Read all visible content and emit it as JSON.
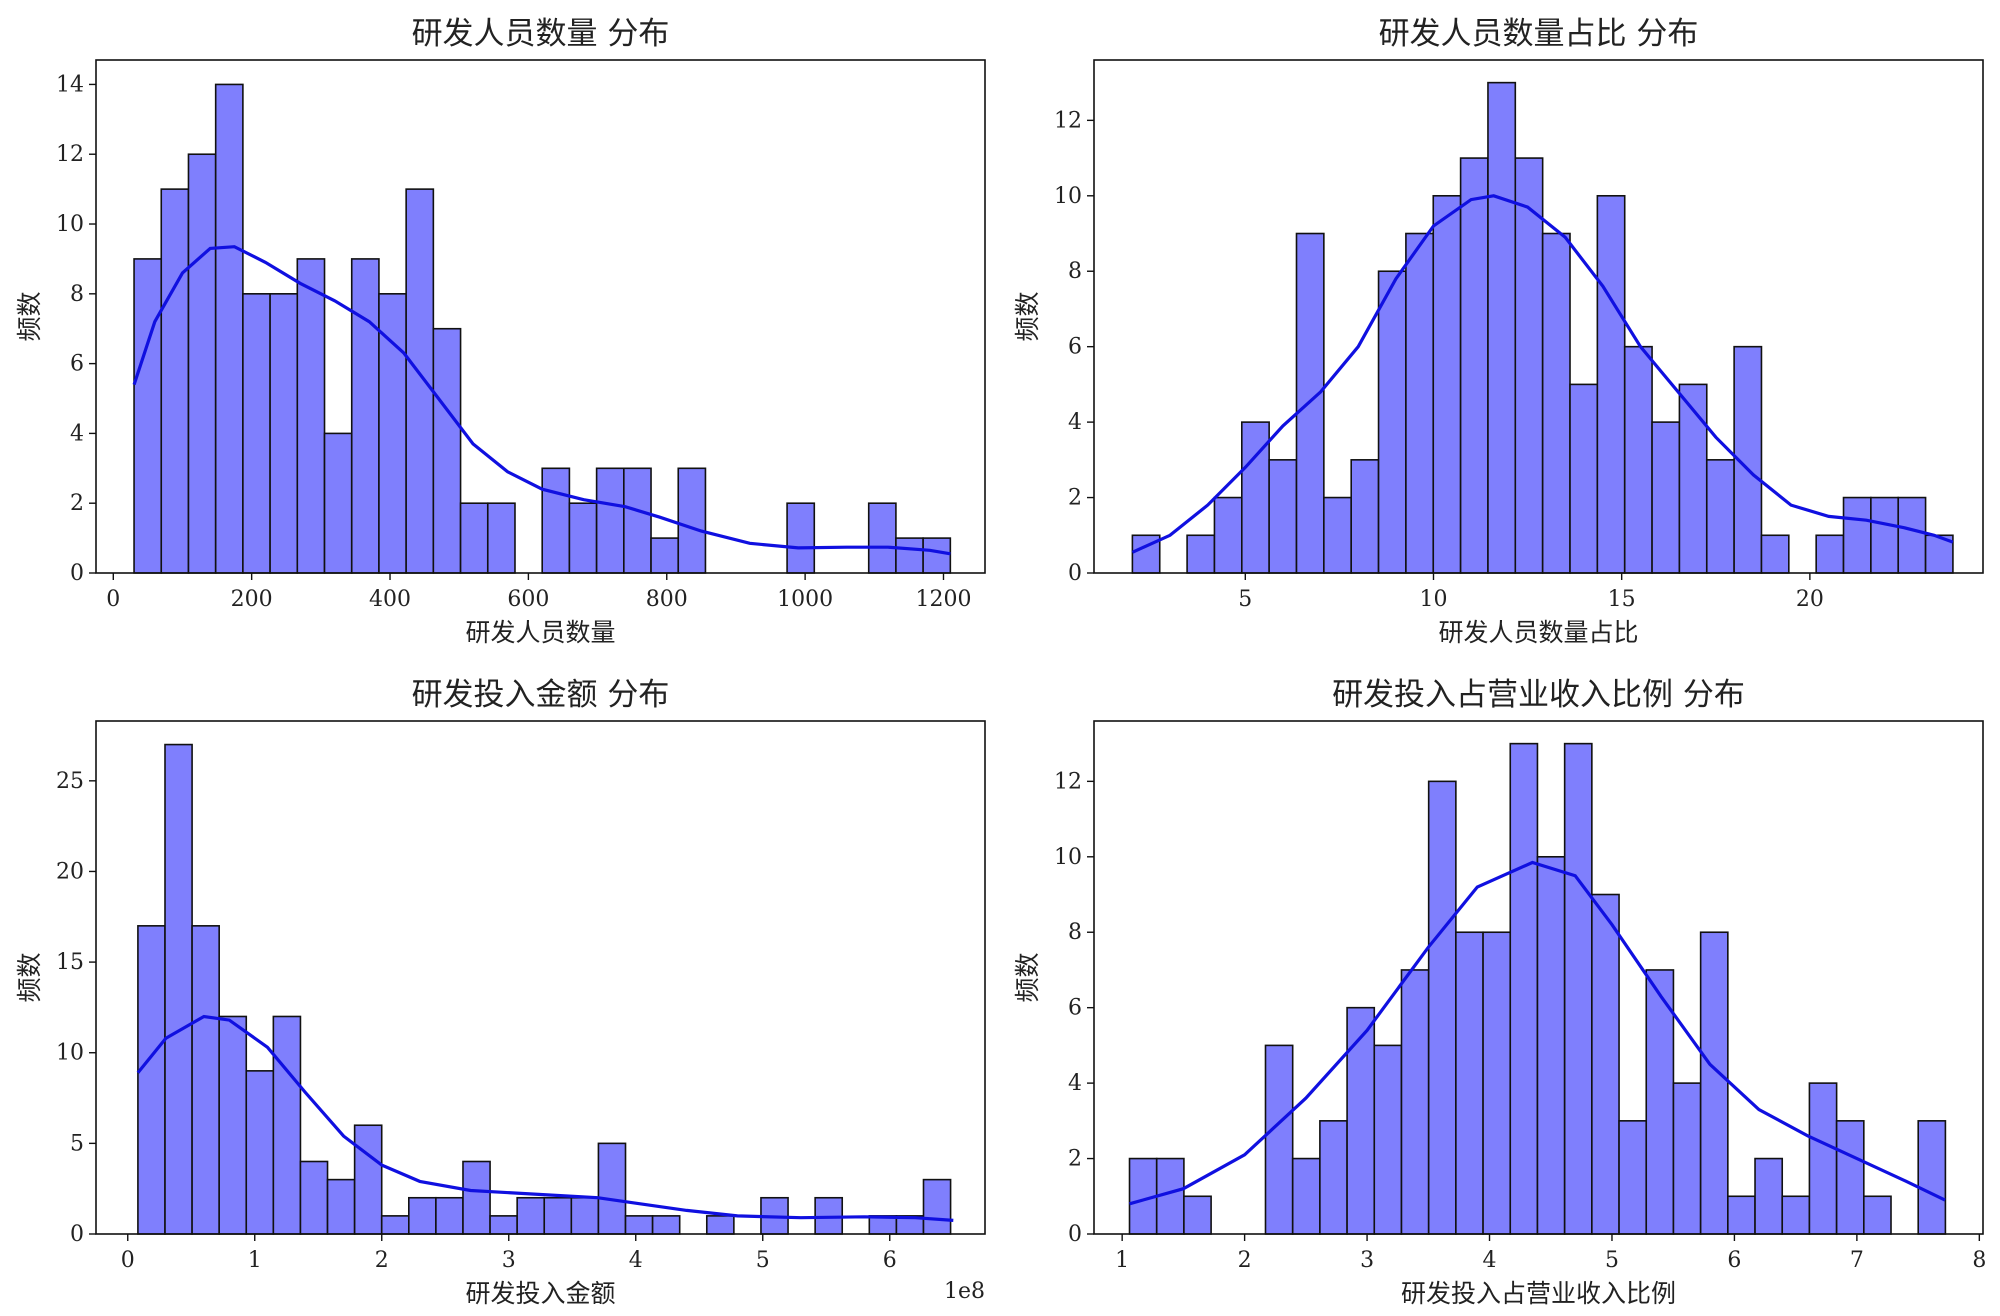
{
  "colors": {
    "bar_fill": "#7f7ffd",
    "bar_edge": "#111111",
    "kde": "#1010e0"
  },
  "chart_data": [
    {
      "type": "bar",
      "title": "研发人员数量 分布",
      "xlabel": "研发人员数量",
      "ylabel": "频数",
      "xlim": [
        -25,
        1260
      ],
      "ylim": [
        0,
        14.7
      ],
      "xticks": [
        0,
        200,
        400,
        600,
        800,
        1000,
        1200
      ],
      "yticks": [
        0,
        2,
        4,
        6,
        8,
        10,
        12,
        14
      ],
      "bin_start": 30,
      "bin_width": 39.33,
      "counts": [
        9,
        11,
        12,
        14,
        8,
        8,
        9,
        4,
        9,
        8,
        11,
        7,
        2,
        2,
        0,
        3,
        2,
        3,
        3,
        1,
        3,
        0,
        0,
        0,
        2,
        0,
        0,
        2,
        1,
        1
      ],
      "kde": [
        [
          30,
          5.4
        ],
        [
          60,
          7.2
        ],
        [
          100,
          8.6
        ],
        [
          140,
          9.3
        ],
        [
          175,
          9.35
        ],
        [
          220,
          8.9
        ],
        [
          270,
          8.3
        ],
        [
          320,
          7.8
        ],
        [
          370,
          7.2
        ],
        [
          420,
          6.3
        ],
        [
          470,
          5.0
        ],
        [
          520,
          3.7
        ],
        [
          570,
          2.9
        ],
        [
          620,
          2.4
        ],
        [
          680,
          2.1
        ],
        [
          740,
          1.9
        ],
        [
          790,
          1.6
        ],
        [
          850,
          1.2
        ],
        [
          920,
          0.85
        ],
        [
          990,
          0.72
        ],
        [
          1060,
          0.74
        ],
        [
          1120,
          0.74
        ],
        [
          1180,
          0.65
        ],
        [
          1210,
          0.55
        ]
      ],
      "grid": false,
      "legend": "none"
    },
    {
      "type": "bar",
      "title": "研发人员数量占比 分布",
      "xlabel": "研发人员数量占比",
      "ylabel": "频数",
      "xlim": [
        0.98,
        24.6
      ],
      "ylim": [
        0,
        13.6
      ],
      "xticks": [
        5,
        10,
        15,
        20
      ],
      "yticks": [
        0,
        2,
        4,
        6,
        8,
        10,
        12
      ],
      "bin_start": 2.0,
      "bin_width": 0.7267,
      "counts": [
        1,
        0,
        1,
        2,
        4,
        3,
        9,
        2,
        3,
        8,
        9,
        10,
        11,
        13,
        11,
        9,
        5,
        10,
        6,
        4,
        5,
        3,
        6,
        1,
        0,
        1,
        2,
        2,
        2,
        1
      ],
      "kde": [
        [
          2.0,
          0.55
        ],
        [
          3.0,
          1.0
        ],
        [
          4.0,
          1.8
        ],
        [
          5.0,
          2.8
        ],
        [
          6.0,
          3.9
        ],
        [
          7.0,
          4.8
        ],
        [
          8.0,
          6.0
        ],
        [
          9.0,
          7.8
        ],
        [
          10.0,
          9.2
        ],
        [
          11.0,
          9.9
        ],
        [
          11.6,
          10.0
        ],
        [
          12.5,
          9.7
        ],
        [
          13.5,
          8.9
        ],
        [
          14.5,
          7.6
        ],
        [
          15.5,
          6.0
        ],
        [
          16.5,
          4.8
        ],
        [
          17.5,
          3.6
        ],
        [
          18.5,
          2.6
        ],
        [
          19.5,
          1.8
        ],
        [
          20.5,
          1.5
        ],
        [
          21.5,
          1.4
        ],
        [
          22.5,
          1.2
        ],
        [
          23.3,
          1.0
        ],
        [
          23.8,
          0.82
        ]
      ],
      "grid": false,
      "legend": "none"
    },
    {
      "type": "bar",
      "title": "研发投入金额 分布",
      "xlabel": "研发投入金额",
      "ylabel": "频数",
      "offset_label": "1e8",
      "xlim": [
        -0.25,
        6.75
      ],
      "ylim": [
        0,
        28.3
      ],
      "xticks": [
        0,
        1,
        2,
        3,
        4,
        5,
        6
      ],
      "yticks": [
        0,
        5,
        10,
        15,
        20,
        25
      ],
      "bin_start": 0.08,
      "bin_width": 0.2133,
      "counts": [
        17,
        27,
        17,
        12,
        9,
        12,
        4,
        3,
        6,
        1,
        2,
        2,
        4,
        1,
        2,
        2,
        2,
        5,
        1,
        1,
        0,
        1,
        0,
        2,
        0,
        2,
        0,
        1,
        1,
        3
      ],
      "kde": [
        [
          0.08,
          8.9
        ],
        [
          0.3,
          10.8
        ],
        [
          0.6,
          12.0
        ],
        [
          0.8,
          11.8
        ],
        [
          1.1,
          10.3
        ],
        [
          1.4,
          7.8
        ],
        [
          1.7,
          5.4
        ],
        [
          2.0,
          3.8
        ],
        [
          2.3,
          2.9
        ],
        [
          2.7,
          2.4
        ],
        [
          3.2,
          2.2
        ],
        [
          3.7,
          2.0
        ],
        [
          4.0,
          1.7
        ],
        [
          4.4,
          1.3
        ],
        [
          4.8,
          1.0
        ],
        [
          5.3,
          0.9
        ],
        [
          5.8,
          0.95
        ],
        [
          6.2,
          0.9
        ],
        [
          6.5,
          0.75
        ]
      ],
      "grid": false,
      "legend": "none"
    },
    {
      "type": "bar",
      "title": "研发投入占营业收入比例 分布",
      "xlabel": "研发投入占营业收入比例",
      "ylabel": "频数",
      "xlim": [
        0.77,
        8.03
      ],
      "ylim": [
        0,
        13.6
      ],
      "xticks": [
        1,
        2,
        3,
        4,
        5,
        6,
        7,
        8
      ],
      "yticks": [
        0,
        2,
        4,
        6,
        8,
        10,
        12
      ],
      "bin_start": 1.06,
      "bin_width": 0.2221,
      "counts": [
        2,
        2,
        1,
        0,
        0,
        5,
        2,
        3,
        6,
        5,
        7,
        12,
        8,
        8,
        13,
        10,
        13,
        9,
        3,
        7,
        4,
        8,
        1,
        2,
        1,
        4,
        3,
        1,
        0,
        3
      ],
      "kde": [
        [
          1.06,
          0.8
        ],
        [
          1.5,
          1.2
        ],
        [
          2.0,
          2.1
        ],
        [
          2.5,
          3.6
        ],
        [
          3.0,
          5.4
        ],
        [
          3.5,
          7.6
        ],
        [
          3.9,
          9.2
        ],
        [
          4.35,
          9.85
        ],
        [
          4.7,
          9.5
        ],
        [
          5.0,
          8.2
        ],
        [
          5.4,
          6.3
        ],
        [
          5.8,
          4.5
        ],
        [
          6.2,
          3.3
        ],
        [
          6.6,
          2.6
        ],
        [
          7.0,
          2.0
        ],
        [
          7.4,
          1.4
        ],
        [
          7.72,
          0.9
        ]
      ],
      "grid": false,
      "legend": "none"
    }
  ]
}
